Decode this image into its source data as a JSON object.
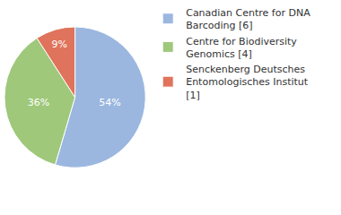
{
  "chart_data": {
    "type": "pie",
    "categories": [
      "Canadian Centre for DNA Barcoding [6]",
      "Centre for Biodiversity Genomics [4]",
      "Senckenberg Deutsches Entomologisches Institut [1]"
    ],
    "values": [
      54,
      36,
      9
    ],
    "value_labels": [
      "54%",
      "36%",
      "9%"
    ],
    "colors": [
      "#9bb7e0",
      "#9fc87b",
      "#e0735b"
    ],
    "data_labels": true,
    "legend": "right"
  }
}
